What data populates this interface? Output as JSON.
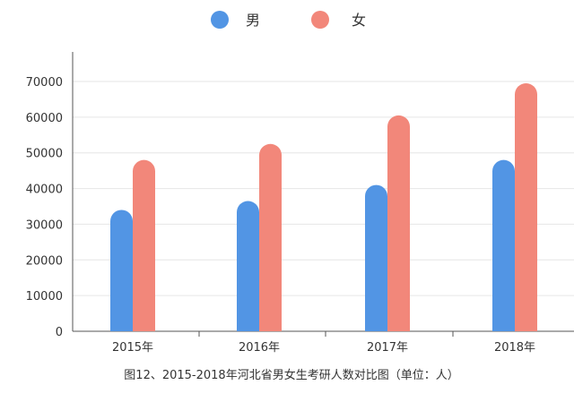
{
  "chart_data": {
    "type": "bar",
    "categories": [
      "2015年",
      "2016年",
      "2017年",
      "2018年"
    ],
    "series": [
      {
        "name": "男",
        "values": [
          34000,
          36500,
          41000,
          48000
        ],
        "color": "#5295e4"
      },
      {
        "name": "女",
        "values": [
          48000,
          52500,
          60500,
          69500
        ],
        "color": "#f2877a"
      }
    ],
    "ylim": [
      0,
      70000
    ],
    "yticks": [
      0,
      10000,
      20000,
      30000,
      40000,
      50000,
      60000,
      70000
    ],
    "grid": true,
    "legend_position": "top-center",
    "caption": "图12、2015-2018年河北省男女生考研人数对比图（单位：人）"
  }
}
